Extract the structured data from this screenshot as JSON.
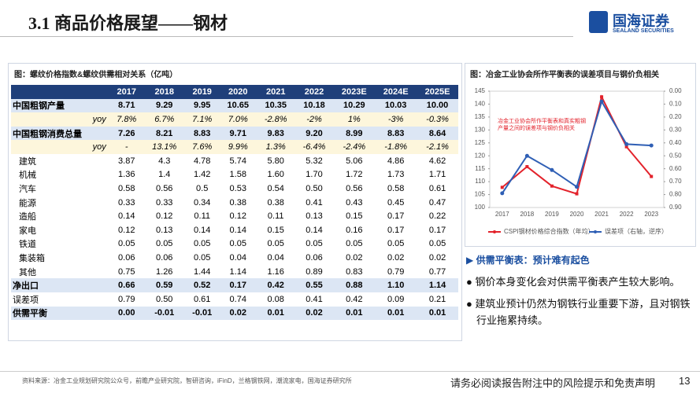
{
  "header": {
    "title": "3.1 商品价格展望——钢材",
    "logo_cn": "国海证券",
    "logo_en": "SEALAND SECURITIES"
  },
  "table": {
    "title": "图：螺纹价格指数&螺纹供需相对关系（亿吨）",
    "header": [
      "2017",
      "2018",
      "2019",
      "2020",
      "2021",
      "2022",
      "2023E",
      "2024E",
      "2025E"
    ],
    "rows": [
      {
        "label": "中国粗钢产量",
        "cells": [
          "8.71",
          "9.29",
          "9.95",
          "10.65",
          "10.35",
          "10.18",
          "10.29",
          "10.03",
          "10.00"
        ]
      },
      {
        "label": "yoy",
        "cells": [
          "7.8%",
          "6.7%",
          "7.1%",
          "7.0%",
          "-2.8%",
          "-2%",
          "1%",
          "-3%",
          "-0.3%"
        ]
      },
      {
        "label": "中国粗钢消费总量",
        "cells": [
          "7.26",
          "8.21",
          "8.83",
          "9.71",
          "9.83",
          "9.20",
          "8.99",
          "8.83",
          "8.64"
        ]
      },
      {
        "label": "yoy",
        "cells": [
          "-",
          "13.1%",
          "7.6%",
          "9.9%",
          "1.3%",
          "-6.4%",
          "-2.4%",
          "-1.8%",
          "-2.1%"
        ]
      },
      {
        "label": "建筑",
        "cells": [
          "3.87",
          "4.3",
          "4.78",
          "5.74",
          "5.80",
          "5.32",
          "5.06",
          "4.86",
          "4.62"
        ]
      },
      {
        "label": "机械",
        "cells": [
          "1.36",
          "1.4",
          "1.42",
          "1.58",
          "1.60",
          "1.70",
          "1.72",
          "1.73",
          "1.71"
        ]
      },
      {
        "label": "汽车",
        "cells": [
          "0.58",
          "0.56",
          "0.5",
          "0.53",
          "0.54",
          "0.50",
          "0.56",
          "0.58",
          "0.61"
        ]
      },
      {
        "label": "能源",
        "cells": [
          "0.33",
          "0.33",
          "0.34",
          "0.38",
          "0.38",
          "0.41",
          "0.43",
          "0.45",
          "0.47"
        ]
      },
      {
        "label": "造船",
        "cells": [
          "0.14",
          "0.12",
          "0.11",
          "0.12",
          "0.11",
          "0.13",
          "0.15",
          "0.17",
          "0.22"
        ]
      },
      {
        "label": "家电",
        "cells": [
          "0.12",
          "0.13",
          "0.14",
          "0.14",
          "0.15",
          "0.14",
          "0.16",
          "0.17",
          "0.17"
        ]
      },
      {
        "label": "铁道",
        "cells": [
          "0.05",
          "0.05",
          "0.05",
          "0.05",
          "0.05",
          "0.05",
          "0.05",
          "0.05",
          "0.05"
        ]
      },
      {
        "label": "集装箱",
        "cells": [
          "0.06",
          "0.06",
          "0.05",
          "0.04",
          "0.04",
          "0.06",
          "0.02",
          "0.02",
          "0.02"
        ]
      },
      {
        "label": "其他",
        "cells": [
          "0.75",
          "1.26",
          "1.44",
          "1.14",
          "1.16",
          "0.89",
          "0.83",
          "0.79",
          "0.77"
        ]
      },
      {
        "label": "净出口",
        "cells": [
          "0.66",
          "0.59",
          "0.52",
          "0.17",
          "0.42",
          "0.55",
          "0.88",
          "1.10",
          "1.14"
        ]
      },
      {
        "label": "误差项",
        "cells": [
          "0.79",
          "0.50",
          "0.61",
          "0.74",
          "0.08",
          "0.41",
          "0.42",
          "0.09",
          "0.21"
        ]
      },
      {
        "label": "供需平衡",
        "cells": [
          "0.00",
          "-0.01",
          "-0.01",
          "0.02",
          "0.01",
          "0.02",
          "0.01",
          "0.01",
          "0.01"
        ]
      }
    ]
  },
  "chart_data": {
    "type": "line",
    "title": "图：冶金工业协会所作平衡表的误差项目与钢价负相关",
    "annotation": "冶金工业协会所作平衡表和真实粗钢产量之间的误差项与钢价负相关",
    "categories": [
      "2017",
      "2018",
      "2019",
      "2020",
      "2021",
      "2022",
      "2023"
    ],
    "series": [
      {
        "name": "CSPI钢材价格综合指数（年均）",
        "color": "#e3222b",
        "values": [
          107.8,
          115.8,
          108.3,
          105.3,
          142.8,
          123.5,
          112
        ]
      },
      {
        "name": "误差项（右轴，逆序）",
        "color": "#2f5fb5",
        "axis": "y2",
        "values": [
          0.79,
          0.5,
          0.61,
          0.74,
          0.08,
          0.41,
          0.42
        ]
      }
    ],
    "ylim": [
      100,
      145
    ],
    "yticks": [
      100,
      105,
      110,
      115,
      120,
      125,
      130,
      135,
      140,
      145
    ],
    "y2lim": [
      0.9,
      0
    ],
    "y2ticks": [
      {
        "value": 0,
        "label": "0.00"
      },
      {
        "value": 0.1,
        "label": "0.10"
      },
      {
        "value": 0.2,
        "label": "0.20"
      },
      {
        "value": 0.3,
        "label": "0.30"
      },
      {
        "value": 0.4,
        "label": "0.40"
      },
      {
        "value": 0.5,
        "label": "0.50"
      },
      {
        "value": 0.6,
        "label": "0.60"
      },
      {
        "value": 0.7,
        "label": "0.70"
      },
      {
        "value": 0.8,
        "label": "0.80"
      },
      {
        "value": 0.9,
        "label": "0.90"
      }
    ],
    "y2_inverted": true,
    "legend": "bottom"
  },
  "bullets": {
    "heading": "供需平衡表：预计难有起色",
    "items": [
      "钢价本身变化会对供需平衡表产生较大影响。",
      "建筑业预计仍然为钢铁行业重要下游，且对钢铁行业拖累持续。"
    ]
  },
  "footer": {
    "source": "资料来源：冶金工业规划研究院公众号，前瞻产业研究院，智研咨询，iFinD，兰格钢铁网，潮流家电，国海证券研究所",
    "disclaimer": "请务必阅读报告附注中的风险提示和免责声明",
    "page": "13"
  }
}
